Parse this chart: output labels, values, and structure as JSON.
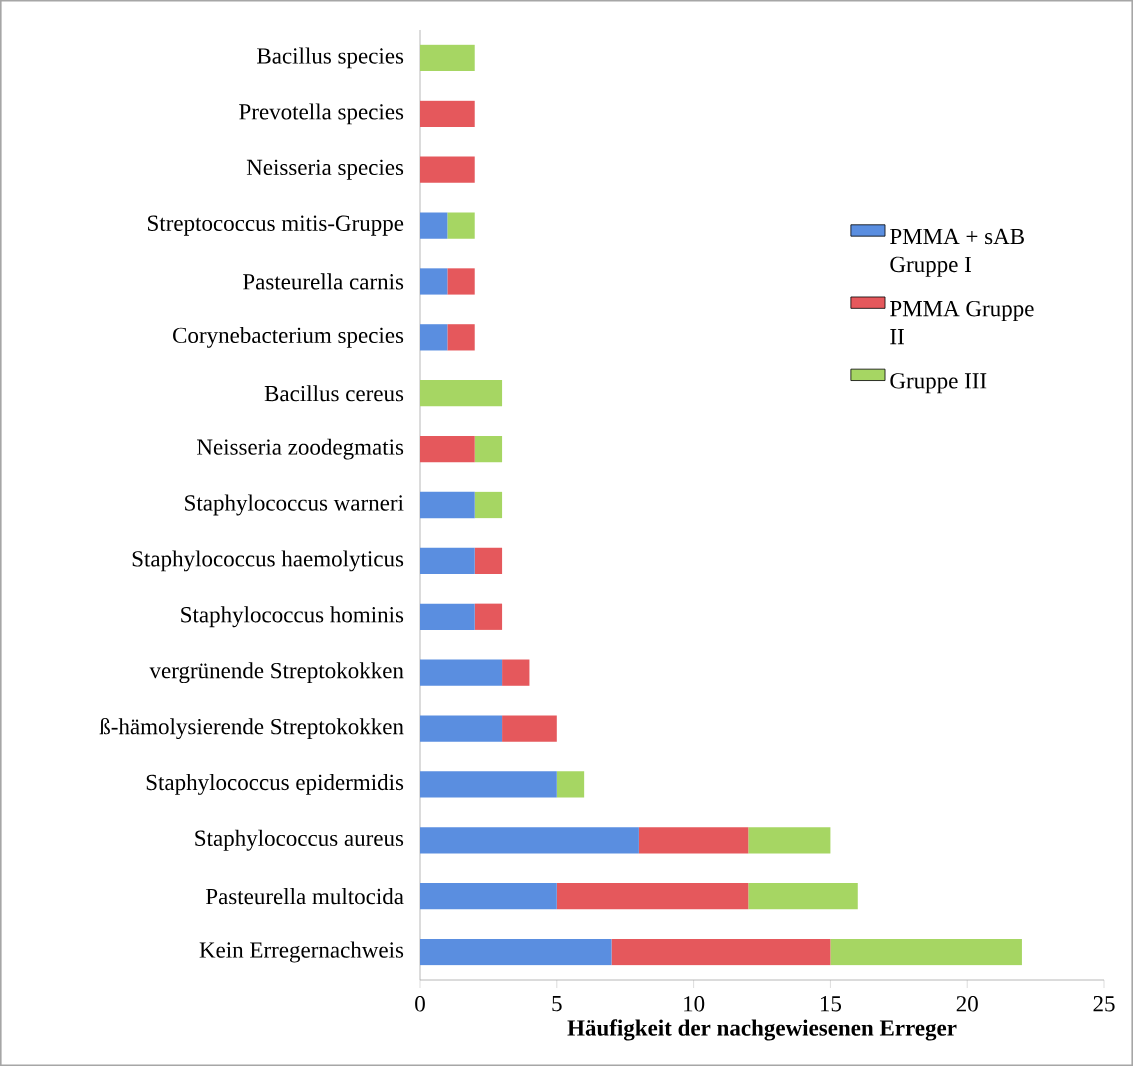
{
  "chart_data": {
    "type": "bar",
    "orientation": "horizontal",
    "stacked": true,
    "categories": [
      "Bacillus species",
      "Prevotella species",
      "Neisseria species",
      "Streptococcus mitis-Gruppe",
      "Pasteurella carnis",
      "Corynebacterium species",
      "Bacillus cereus",
      "Neisseria zoodegmatis",
      "Staphylococcus warneri",
      "Staphylococcus haemolyticus",
      "Staphylococcus hominis",
      "vergrünende Streptokokken",
      "ß-hämolysierende Streptokokken",
      "Staphylococcus epidermidis",
      "Staphylococcus aureus",
      "Pasteurella multocida",
      "Kein Erregernachweis"
    ],
    "series": [
      {
        "name": "PMMA + sAB Gruppe I",
        "color": "#5a8ee0",
        "values": [
          0,
          0,
          0,
          1,
          1,
          1,
          0,
          0,
          2,
          2,
          2,
          3,
          3,
          5,
          8,
          5,
          7
        ]
      },
      {
        "name": "PMMA Gruppe II",
        "color": "#e5585c",
        "values": [
          0,
          2,
          2,
          0,
          1,
          1,
          0,
          2,
          0,
          1,
          1,
          1,
          2,
          0,
          4,
          7,
          8
        ]
      },
      {
        "name": "Gruppe III",
        "color": "#a6d663",
        "values": [
          2,
          0,
          0,
          1,
          0,
          0,
          3,
          1,
          1,
          0,
          0,
          0,
          0,
          1,
          3,
          4,
          7
        ]
      }
    ],
    "xlabel": "Häufigkeit der nachgewiesenen Erreger",
    "xlim": [
      0,
      25
    ],
    "xticks": [
      0,
      5,
      10,
      15,
      20,
      25
    ],
    "legend": "right"
  }
}
